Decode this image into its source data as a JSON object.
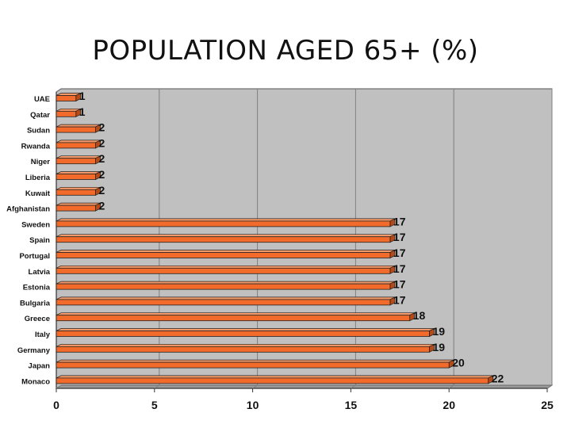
{
  "chart_data": {
    "type": "bar",
    "orientation": "horizontal",
    "title": "POPULATION AGED 65+ (%)",
    "xlabel": "",
    "ylabel": "",
    "xlim": [
      0,
      25
    ],
    "xticks": [
      0,
      5,
      10,
      15,
      20,
      25
    ],
    "grid": true,
    "legend": "none",
    "bar_color": "#f26b2a",
    "plot_background": "#c0c0c0",
    "categories": [
      "UAE",
      "Qatar",
      "Sudan",
      "Rwanda",
      "Niger",
      "Liberia",
      "Kuwait",
      "Afghanistan",
      "Sweden",
      "Spain",
      "Portugal",
      "Latvia",
      "Estonia",
      "Bulgaria",
      "Greece",
      "Italy",
      "Germany",
      "Japan",
      "Monaco"
    ],
    "values": [
      1,
      1,
      2,
      2,
      2,
      2,
      2,
      2,
      17,
      17,
      17,
      17,
      17,
      17,
      18,
      19,
      19,
      20,
      22
    ]
  }
}
